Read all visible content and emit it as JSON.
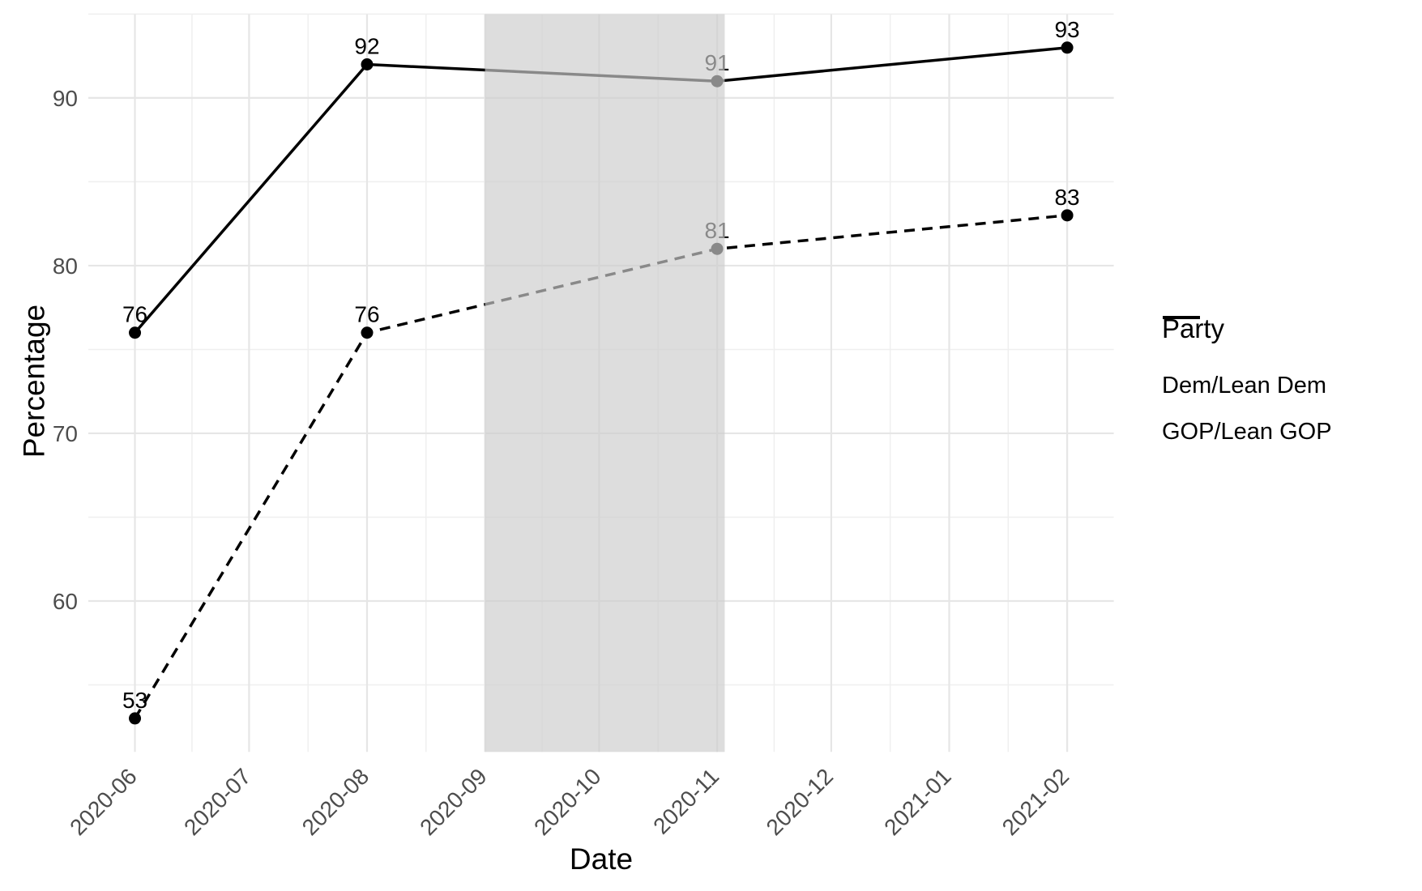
{
  "chart_data": {
    "type": "line",
    "xlabel": "Date",
    "ylabel": "Percentage",
    "legend": {
      "title": "Party",
      "position": "right"
    },
    "x_ticks": [
      {
        "date": "2020-06-01",
        "label": "2020-06"
      },
      {
        "date": "2020-07-01",
        "label": "2020-07"
      },
      {
        "date": "2020-08-01",
        "label": "2020-08"
      },
      {
        "date": "2020-09-01",
        "label": "2020-09"
      },
      {
        "date": "2020-10-01",
        "label": "2020-10"
      },
      {
        "date": "2020-11-01",
        "label": "2020-11"
      },
      {
        "date": "2020-12-01",
        "label": "2020-12"
      },
      {
        "date": "2021-01-01",
        "label": "2021-01"
      },
      {
        "date": "2021-02-01",
        "label": "2021-02"
      }
    ],
    "y_ticks": [
      60,
      70,
      80,
      90
    ],
    "y_minor_ticks": [
      55,
      65,
      75,
      85,
      95
    ],
    "ylim": [
      51,
      95
    ],
    "series": [
      {
        "name": "Dem/Lean Dem",
        "style": "solid",
        "color": "#000000",
        "x": [
          "2020-06-01",
          "2020-08-01",
          "2020-11-01",
          "2021-02-01"
        ],
        "values": [
          76,
          92,
          91,
          93
        ]
      },
      {
        "name": "GOP/Lean GOP",
        "style": "dashed",
        "color": "#000000",
        "x": [
          "2020-06-01",
          "2020-08-01",
          "2020-11-01",
          "2021-02-01"
        ],
        "values": [
          53,
          76,
          81,
          83
        ]
      }
    ],
    "shaded_region": {
      "start": "2020-09-01",
      "end": "2020-11-03",
      "color": "#cccccc",
      "opacity": 0.67
    },
    "grid_color_major": "#e6e6e6",
    "grid_color_minor": "#efefef",
    "tick_label_color": "#4d4d4d"
  }
}
